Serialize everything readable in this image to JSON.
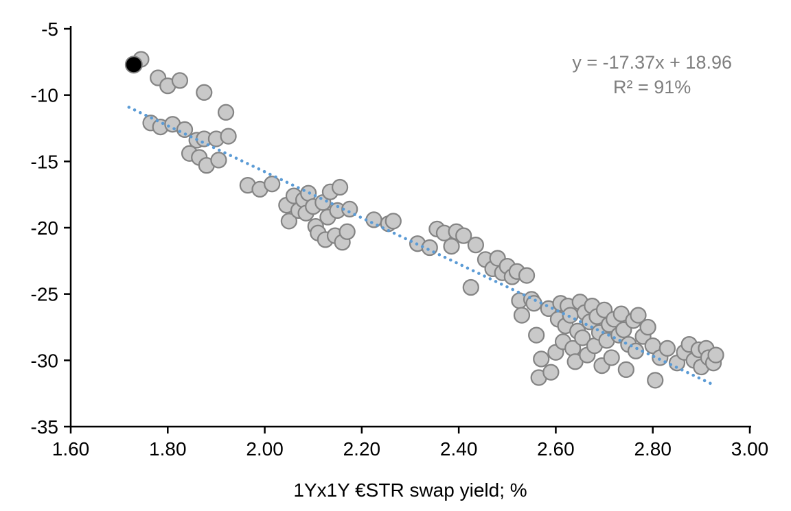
{
  "chart_data": {
    "type": "scatter",
    "title": "",
    "xlabel": "1Yx1Y €STR swap yield; %",
    "ylabel": "",
    "xlim": [
      1.6,
      3.0
    ],
    "ylim": [
      -35,
      -5
    ],
    "grid": false,
    "legend": "none",
    "xtick_values": [
      1.6,
      1.8,
      2.0,
      2.2,
      2.4,
      2.6,
      2.8,
      3.0
    ],
    "xtick_labels": [
      "1.60",
      "1.80",
      "2.00",
      "2.20",
      "2.40",
      "2.60",
      "2.80",
      "3.00"
    ],
    "ytick_values": [
      -5,
      -10,
      -15,
      -20,
      -25,
      -30,
      -35
    ],
    "ytick_labels": [
      "-5",
      "-10",
      "-15",
      "-20",
      "-25",
      "-30",
      "-35"
    ],
    "annotation": {
      "line1": "y = -17.37x + 18.96",
      "line2": "R² = 91%"
    },
    "trendline": {
      "slope": -17.37,
      "intercept": 18.96,
      "x_start": 1.72,
      "x_end": 2.92,
      "style": "dotted"
    },
    "highlight_point": [
      1.73,
      -7.7
    ],
    "points": [
      [
        1.745,
        -7.3
      ],
      [
        1.78,
        -8.7
      ],
      [
        1.8,
        -9.3
      ],
      [
        1.825,
        -8.9
      ],
      [
        1.875,
        -9.8
      ],
      [
        1.92,
        -11.3
      ],
      [
        1.765,
        -12.1
      ],
      [
        1.785,
        -12.4
      ],
      [
        1.81,
        -12.2
      ],
      [
        1.835,
        -12.6
      ],
      [
        1.86,
        -13.4
      ],
      [
        1.875,
        -13.3
      ],
      [
        1.9,
        -13.3
      ],
      [
        1.925,
        -13.1
      ],
      [
        1.845,
        -14.4
      ],
      [
        1.865,
        -14.7
      ],
      [
        1.88,
        -15.3
      ],
      [
        1.905,
        -14.9
      ],
      [
        1.965,
        -16.8
      ],
      [
        1.99,
        -17.1
      ],
      [
        2.015,
        -16.7
      ],
      [
        2.045,
        -18.3
      ],
      [
        2.05,
        -19.5
      ],
      [
        2.06,
        -17.6
      ],
      [
        2.07,
        -18.7
      ],
      [
        2.08,
        -17.9
      ],
      [
        2.085,
        -18.9
      ],
      [
        2.09,
        -17.4
      ],
      [
        2.1,
        -18.4
      ],
      [
        2.105,
        -19.9
      ],
      [
        2.11,
        -20.4
      ],
      [
        2.12,
        -18.1
      ],
      [
        2.125,
        -20.9
      ],
      [
        2.13,
        -19.2
      ],
      [
        2.135,
        -17.3
      ],
      [
        2.145,
        -20.6
      ],
      [
        2.15,
        -18.7
      ],
      [
        2.155,
        -16.95
      ],
      [
        2.16,
        -21.1
      ],
      [
        2.17,
        -20.3
      ],
      [
        2.175,
        -18.6
      ],
      [
        2.225,
        -19.4
      ],
      [
        2.255,
        -19.7
      ],
      [
        2.265,
        -19.5
      ],
      [
        2.315,
        -21.2
      ],
      [
        2.34,
        -21.5
      ],
      [
        2.355,
        -20.1
      ],
      [
        2.37,
        -20.4
      ],
      [
        2.385,
        -21.4
      ],
      [
        2.395,
        -20.3
      ],
      [
        2.41,
        -20.6
      ],
      [
        2.425,
        -24.5
      ],
      [
        2.435,
        -21.3
      ],
      [
        2.455,
        -22.4
      ],
      [
        2.47,
        -23.1
      ],
      [
        2.48,
        -22.3
      ],
      [
        2.49,
        -23.4
      ],
      [
        2.5,
        -22.9
      ],
      [
        2.51,
        -23.7
      ],
      [
        2.52,
        -23.3
      ],
      [
        2.525,
        -25.5
      ],
      [
        2.53,
        -26.6
      ],
      [
        2.54,
        -23.6
      ],
      [
        2.55,
        -25.4
      ],
      [
        2.555,
        -25.7
      ],
      [
        2.56,
        -28.1
      ],
      [
        2.565,
        -31.3
      ],
      [
        2.57,
        -29.9
      ],
      [
        2.585,
        -26.1
      ],
      [
        2.59,
        -30.9
      ],
      [
        2.6,
        -29.4
      ],
      [
        2.605,
        -26.9
      ],
      [
        2.61,
        -25.7
      ],
      [
        2.615,
        -28.6
      ],
      [
        2.62,
        -27.4
      ],
      [
        2.625,
        -25.9
      ],
      [
        2.63,
        -26.6
      ],
      [
        2.635,
        -29.1
      ],
      [
        2.64,
        -30.1
      ],
      [
        2.645,
        -27.8
      ],
      [
        2.65,
        -25.6
      ],
      [
        2.655,
        -28.3
      ],
      [
        2.66,
        -26.4
      ],
      [
        2.665,
        -29.6
      ],
      [
        2.67,
        -27.1
      ],
      [
        2.675,
        -25.9
      ],
      [
        2.68,
        -28.9
      ],
      [
        2.685,
        -26.7
      ],
      [
        2.69,
        -27.9
      ],
      [
        2.695,
        -30.4
      ],
      [
        2.7,
        -26.2
      ],
      [
        2.705,
        -28.5
      ],
      [
        2.71,
        -27.3
      ],
      [
        2.715,
        -29.8
      ],
      [
        2.72,
        -26.9
      ],
      [
        2.73,
        -28.1
      ],
      [
        2.735,
        -26.5
      ],
      [
        2.74,
        -27.7
      ],
      [
        2.745,
        -30.7
      ],
      [
        2.75,
        -28.8
      ],
      [
        2.76,
        -27.0
      ],
      [
        2.765,
        -29.3
      ],
      [
        2.77,
        -26.6
      ],
      [
        2.78,
        -28.2
      ],
      [
        2.79,
        -27.5
      ],
      [
        2.8,
        -28.9
      ],
      [
        2.805,
        -31.5
      ],
      [
        2.815,
        -29.8
      ],
      [
        2.83,
        -29.1
      ],
      [
        2.85,
        -30.2
      ],
      [
        2.865,
        -29.4
      ],
      [
        2.875,
        -28.8
      ],
      [
        2.885,
        -30.0
      ],
      [
        2.895,
        -29.2
      ],
      [
        2.9,
        -30.5
      ],
      [
        2.91,
        -29.1
      ],
      [
        2.915,
        -29.8
      ],
      [
        2.925,
        -30.2
      ],
      [
        2.93,
        -29.6
      ]
    ],
    "colors": {
      "point_fill": "#c9c9c9",
      "point_stroke": "#848484",
      "highlight_fill": "#000000",
      "highlight_stroke": "#7f7f7f",
      "trendline": "#5b9bd5",
      "axis": "#000000",
      "annotation_text": "#7f7f7f"
    }
  }
}
